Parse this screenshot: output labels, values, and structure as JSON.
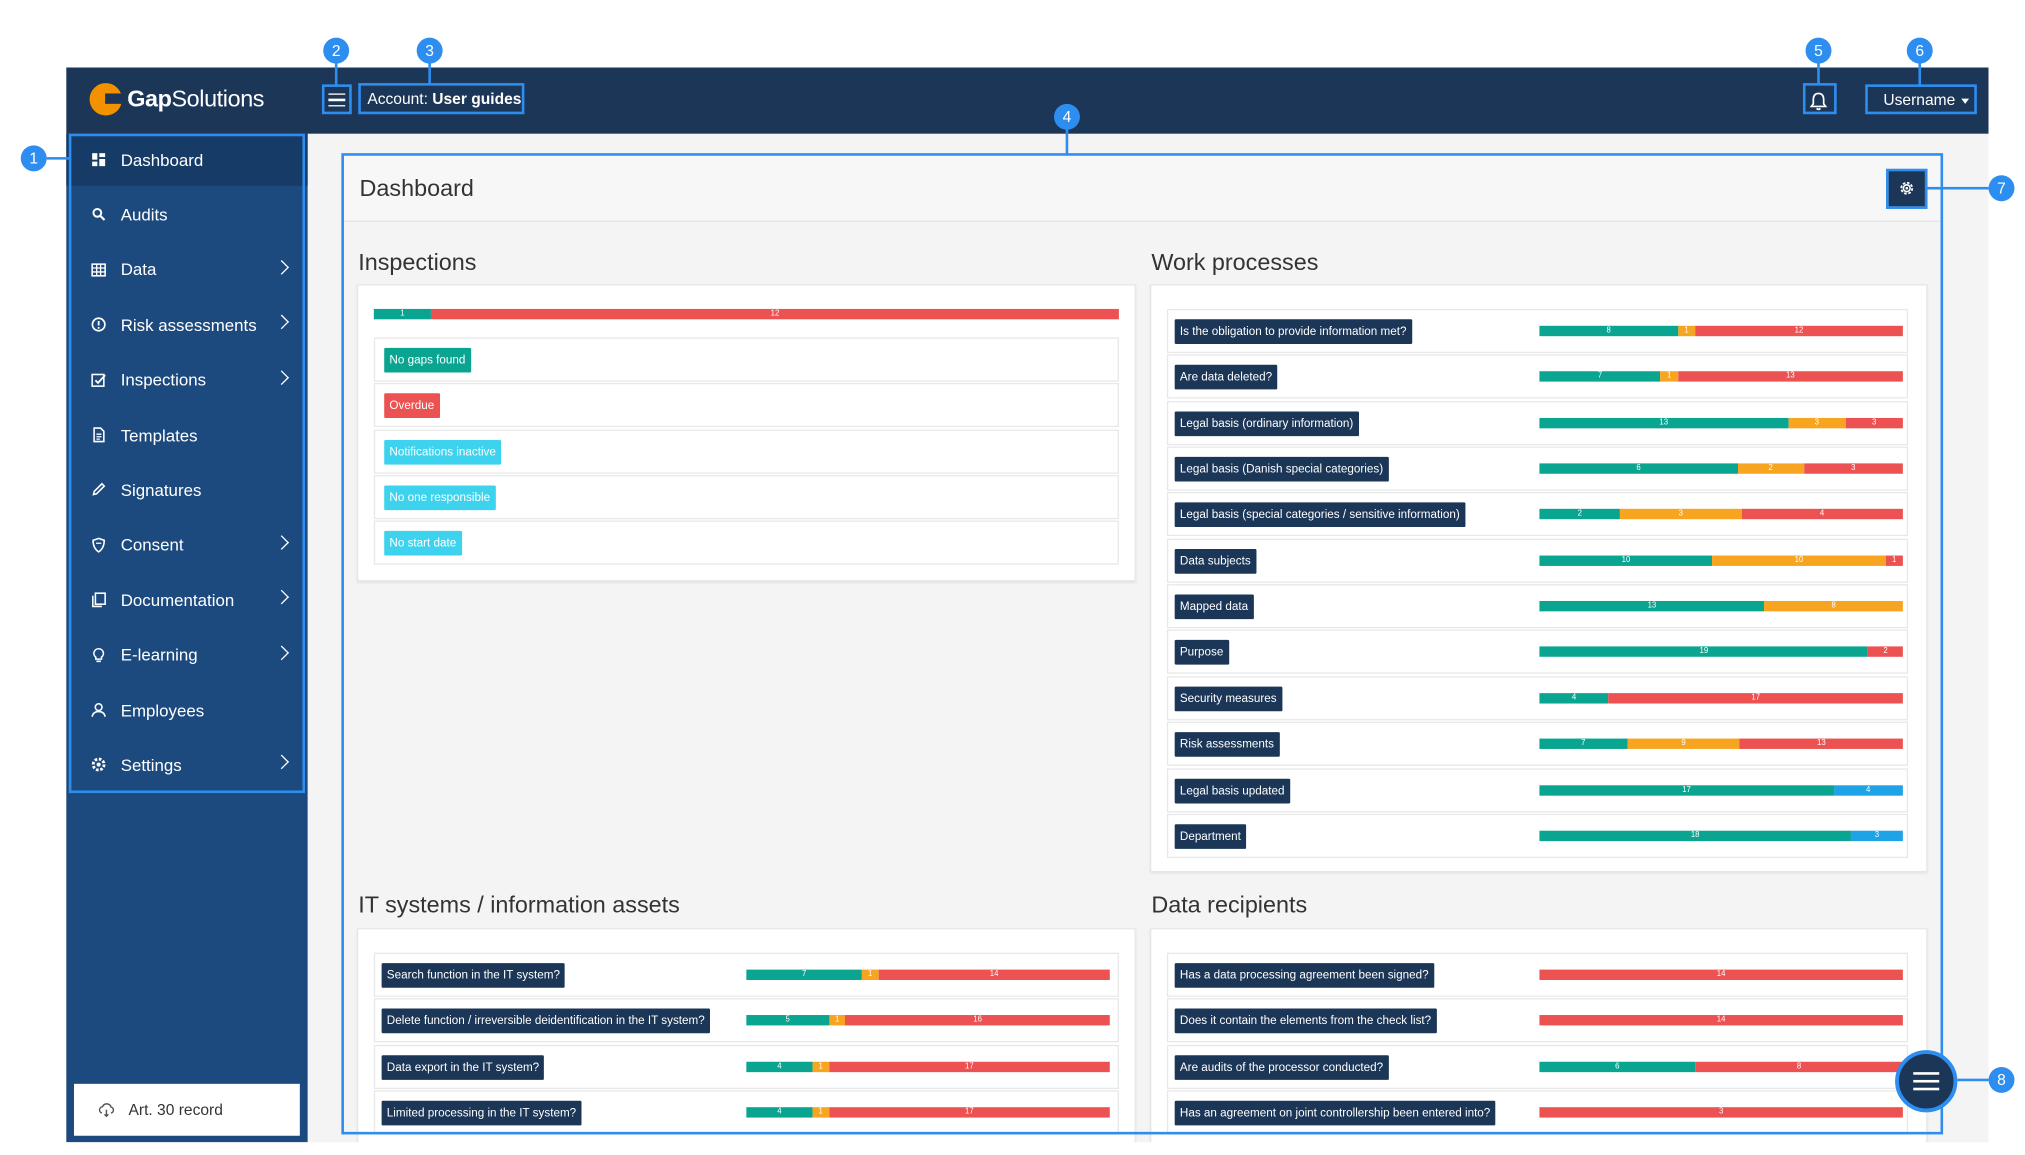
{
  "header": {
    "logo_text_bold": "Gap",
    "logo_text": "Solutions",
    "account_prefix": "Account: ",
    "account_name": "User guides",
    "username": "Username"
  },
  "sidebar": {
    "items": [
      {
        "label": "Dashboard",
        "icon": "dashboard-icon",
        "active": true,
        "has_submenu": false
      },
      {
        "label": "Audits",
        "icon": "search-icon",
        "active": false,
        "has_submenu": false
      },
      {
        "label": "Data",
        "icon": "table-icon",
        "active": false,
        "has_submenu": true
      },
      {
        "label": "Risk assessments",
        "icon": "alert-circle-icon",
        "active": false,
        "has_submenu": true
      },
      {
        "label": "Inspections",
        "icon": "checkbox-icon",
        "active": false,
        "has_submenu": true
      },
      {
        "label": "Templates",
        "icon": "document-icon",
        "active": false,
        "has_submenu": false
      },
      {
        "label": "Signatures",
        "icon": "pen-icon",
        "active": false,
        "has_submenu": false
      },
      {
        "label": "Consent",
        "icon": "shield-icon",
        "active": false,
        "has_submenu": true
      },
      {
        "label": "Documentation",
        "icon": "copy-icon",
        "active": false,
        "has_submenu": true
      },
      {
        "label": "E-learning",
        "icon": "lightbulb-icon",
        "active": false,
        "has_submenu": true
      },
      {
        "label": "Employees",
        "icon": "user-icon",
        "active": false,
        "has_submenu": false
      },
      {
        "label": "Settings",
        "icon": "gear-icon",
        "active": false,
        "has_submenu": true
      }
    ],
    "footer_button": "Art. 30 record"
  },
  "dashboard": {
    "title": "Dashboard",
    "inspections": {
      "title": "Inspections",
      "summary_bar": [
        {
          "value": 1,
          "color": "green"
        },
        {
          "value": 12,
          "color": "red"
        }
      ],
      "tags": [
        {
          "label": "No gaps found",
          "color": "#0aa591"
        },
        {
          "label": "Overdue",
          "color": "#ec5252"
        },
        {
          "label": "Notifications inactive",
          "color": "#3dd3ef"
        },
        {
          "label": "No one responsible",
          "color": "#3dd3ef"
        },
        {
          "label": "No start date",
          "color": "#3dd3ef"
        }
      ]
    },
    "work_processes": {
      "title": "Work processes",
      "rows": [
        {
          "label": "Is the obligation to provide information met?",
          "segments": [
            {
              "v": 8,
              "c": "g"
            },
            {
              "v": 1,
              "c": "o"
            },
            {
              "v": 12,
              "c": "r"
            }
          ]
        },
        {
          "label": "Are data deleted?",
          "segments": [
            {
              "v": 7,
              "c": "g"
            },
            {
              "v": 1,
              "c": "o"
            },
            {
              "v": 13,
              "c": "r"
            }
          ]
        },
        {
          "label": "Legal basis (ordinary information)",
          "segments": [
            {
              "v": 13,
              "c": "g"
            },
            {
              "v": 3,
              "c": "o"
            },
            {
              "v": 3,
              "c": "r"
            }
          ]
        },
        {
          "label": "Legal basis (Danish special categories)",
          "segments": [
            {
              "v": 6,
              "c": "g"
            },
            {
              "v": 2,
              "c": "o"
            },
            {
              "v": 3,
              "c": "r"
            }
          ]
        },
        {
          "label": "Legal basis (special categories / sensitive information)",
          "segments": [
            {
              "v": 2,
              "c": "g"
            },
            {
              "v": 3,
              "c": "o"
            },
            {
              "v": 4,
              "c": "r"
            }
          ]
        },
        {
          "label": "Data subjects",
          "segments": [
            {
              "v": 10,
              "c": "g"
            },
            {
              "v": 10,
              "c": "o"
            },
            {
              "v": 1,
              "c": "r"
            }
          ]
        },
        {
          "label": "Mapped data",
          "segments": [
            {
              "v": 13,
              "c": "g"
            },
            {
              "v": 8,
              "c": "o"
            }
          ]
        },
        {
          "label": "Purpose",
          "segments": [
            {
              "v": 19,
              "c": "g"
            },
            {
              "v": 2,
              "c": "r"
            }
          ]
        },
        {
          "label": "Security measures",
          "segments": [
            {
              "v": 4,
              "c": "g"
            },
            {
              "v": 17,
              "c": "r"
            }
          ]
        },
        {
          "label": "Risk assessments",
          "segments": [
            {
              "v": 7,
              "c": "g"
            },
            {
              "v": 9,
              "c": "o"
            },
            {
              "v": 13,
              "c": "r"
            }
          ]
        },
        {
          "label": "Legal basis updated",
          "segments": [
            {
              "v": 17,
              "c": "g"
            },
            {
              "v": 4,
              "c": "b"
            }
          ]
        },
        {
          "label": "Department",
          "segments": [
            {
              "v": 18,
              "c": "g"
            },
            {
              "v": 3,
              "c": "b"
            }
          ]
        }
      ]
    },
    "it_systems": {
      "title": "IT systems / information assets",
      "rows": [
        {
          "label": "Search function in the IT system?",
          "segments": [
            {
              "v": 7,
              "c": "g"
            },
            {
              "v": 1,
              "c": "o"
            },
            {
              "v": 14,
              "c": "r"
            }
          ]
        },
        {
          "label": "Delete function / irreversible deidentification in the IT system?",
          "segments": [
            {
              "v": 5,
              "c": "g"
            },
            {
              "v": 1,
              "c": "o"
            },
            {
              "v": 16,
              "c": "r"
            }
          ]
        },
        {
          "label": "Data export in the IT system?",
          "segments": [
            {
              "v": 4,
              "c": "g"
            },
            {
              "v": 1,
              "c": "o"
            },
            {
              "v": 17,
              "c": "r"
            }
          ]
        },
        {
          "label": "Limited processing in the IT system?",
          "segments": [
            {
              "v": 4,
              "c": "g"
            },
            {
              "v": 1,
              "c": "o"
            },
            {
              "v": 17,
              "c": "r"
            }
          ]
        }
      ]
    },
    "data_recipients": {
      "title": "Data recipients",
      "rows": [
        {
          "label": "Has a data processing agreement been signed?",
          "segments": [
            {
              "v": 14,
              "c": "r"
            }
          ]
        },
        {
          "label": "Does it contain the elements from the check list?",
          "segments": [
            {
              "v": 14,
              "c": "r"
            }
          ]
        },
        {
          "label": "Are audits of the processor conducted?",
          "segments": [
            {
              "v": 6,
              "c": "g"
            },
            {
              "v": 8,
              "c": "r"
            }
          ]
        },
        {
          "label": "Has an agreement on joint controllership been entered into?",
          "segments": [
            {
              "v": 3,
              "c": "r"
            }
          ]
        }
      ]
    }
  },
  "callouts": [
    "1",
    "2",
    "3",
    "4",
    "5",
    "6",
    "7",
    "8"
  ],
  "colors": {
    "navy": "#1b3657",
    "sidebar": "#1d4a7e",
    "green": "#0aa591",
    "orange": "#f7a520",
    "red": "#ec5252",
    "blue": "#1ea3e6",
    "callout": "#2e8ef0"
  }
}
